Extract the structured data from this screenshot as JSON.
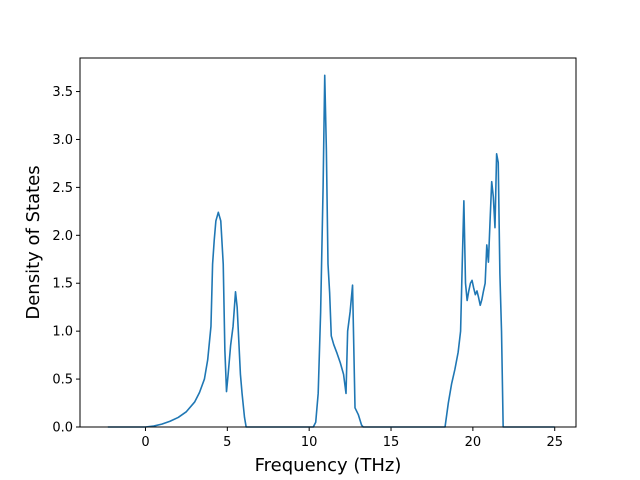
{
  "chart_data": {
    "type": "line",
    "title": "",
    "xlabel": "Frequency (THz)",
    "ylabel": "Density of States",
    "xlim": [
      -4.0,
      26.3
    ],
    "ylim": [
      0.0,
      3.85
    ],
    "xticks": [
      0,
      5,
      10,
      15,
      20,
      25
    ],
    "yticks": [
      0.0,
      0.5,
      1.0,
      1.5,
      2.0,
      2.5,
      3.0,
      3.5
    ],
    "xtick_labels": [
      "0",
      "5",
      "10",
      "15",
      "20",
      "25"
    ],
    "ytick_labels": [
      "0.0",
      "0.5",
      "1.0",
      "1.5",
      "2.0",
      "2.5",
      "3.0",
      "3.5"
    ],
    "grid": false,
    "line_color": "#1f77b4",
    "series": [
      {
        "x": [
          -2.3,
          -1.0,
          0.0,
          0.5,
          1.0,
          1.5,
          2.0,
          2.5,
          3.0,
          3.3,
          3.6,
          3.8,
          4.0,
          4.1,
          4.2,
          4.3,
          4.45,
          4.6,
          4.75,
          4.85,
          4.95,
          5.05,
          5.2,
          5.35,
          5.5,
          5.6,
          5.7,
          5.8,
          5.9,
          6.05,
          6.15,
          10.25,
          10.4,
          10.55,
          10.7,
          10.85,
          10.95,
          11.05,
          11.15,
          11.25,
          11.35,
          11.5,
          11.7,
          11.9,
          12.1,
          12.25,
          12.35,
          12.5,
          12.65,
          12.8,
          13.0,
          13.2,
          13.3,
          18.3,
          18.5,
          18.7,
          18.9,
          19.1,
          19.25,
          19.35,
          19.45,
          19.55,
          19.65,
          19.75,
          19.85,
          19.95,
          20.05,
          20.15,
          20.25,
          20.35,
          20.45,
          20.55,
          20.65,
          20.75,
          20.85,
          20.95,
          21.05,
          21.15,
          21.25,
          21.35,
          21.45,
          21.55,
          21.65,
          21.75,
          21.85,
          21.95,
          22.05,
          22.15,
          22.25,
          22.35,
          22.45,
          22.55,
          22.65,
          22.75,
          23.0,
          25.0
        ],
        "y": [
          0.0,
          0.0,
          0.0,
          0.01,
          0.03,
          0.06,
          0.1,
          0.16,
          0.26,
          0.36,
          0.5,
          0.7,
          1.05,
          1.7,
          1.95,
          2.15,
          2.24,
          2.15,
          1.7,
          0.8,
          0.37,
          0.55,
          0.85,
          1.05,
          1.41,
          1.25,
          0.9,
          0.55,
          0.35,
          0.1,
          0.0,
          0.0,
          0.05,
          0.35,
          1.2,
          2.5,
          3.67,
          2.9,
          1.7,
          1.4,
          0.95,
          0.86,
          0.77,
          0.67,
          0.55,
          0.35,
          1.0,
          1.2,
          1.48,
          0.2,
          0.13,
          0.02,
          0.0,
          0.0,
          0.25,
          0.45,
          0.6,
          0.78,
          1.0,
          1.7,
          2.36,
          1.5,
          1.32,
          1.42,
          1.5,
          1.53,
          1.45,
          1.38,
          1.42,
          1.35,
          1.27,
          1.33,
          1.42,
          1.5,
          1.9,
          1.72,
          2.15,
          2.56,
          2.4,
          2.08,
          2.85,
          2.76,
          1.6,
          1.0,
          0.0,
          0.0,
          0.0,
          0.0,
          0.0,
          0.0,
          0.0,
          0.0,
          0.0,
          0.0,
          0.0,
          0.0
        ]
      }
    ]
  }
}
